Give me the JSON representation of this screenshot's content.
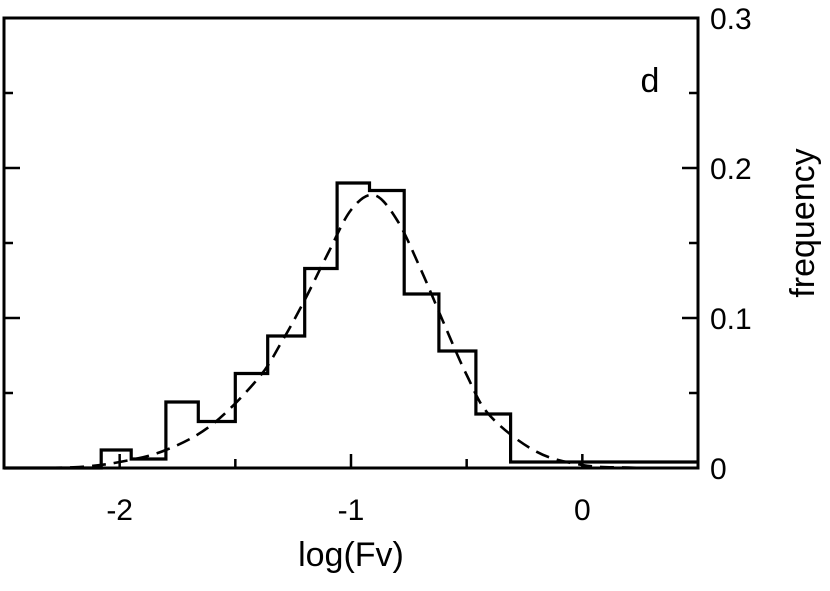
{
  "chart_data": {
    "type": "histogram",
    "panel_label": "d",
    "xlabel": "log(Fv)",
    "ylabel": "frequency",
    "xlim": [
      -2.5,
      0.5
    ],
    "ylim": [
      0,
      0.3
    ],
    "x_ticks": [
      -2,
      -1,
      0
    ],
    "x_tick_labels": [
      "-2",
      "-1",
      "0"
    ],
    "y_ticks": [
      0,
      0.1,
      0.2,
      0.3
    ],
    "y_tick_labels": [
      "0",
      "0.1",
      "0.2",
      "0.3"
    ],
    "y_axis_side": "right",
    "grid": false,
    "series": [
      {
        "style": "solid-step",
        "bin_edges": [
          -2.5,
          -2.08,
          -1.95,
          -1.8,
          -1.66,
          -1.5,
          -1.36,
          -1.2,
          -1.06,
          -0.92,
          -0.77,
          -0.62,
          -0.46,
          -0.31,
          0.5
        ],
        "values": [
          0.0,
          0.012,
          0.006,
          0.044,
          0.031,
          0.063,
          0.088,
          0.133,
          0.19,
          0.185,
          0.116,
          0.078,
          0.036,
          0.004
        ]
      },
      {
        "style": "dashed-curve",
        "distribution": "gaussian-fit",
        "x": [
          -2.5,
          -2.2,
          -2.0,
          -1.8,
          -1.6,
          -1.4,
          -1.3,
          -1.2,
          -1.1,
          -1.0,
          -0.9,
          -0.8,
          -0.7,
          -0.6,
          -0.5,
          -0.4,
          -0.2,
          0.0,
          0.2,
          0.5
        ],
        "y": [
          0.0,
          0.0005,
          0.004,
          0.012,
          0.029,
          0.06,
          0.084,
          0.112,
          0.143,
          0.172,
          0.182,
          0.165,
          0.133,
          0.097,
          0.062,
          0.035,
          0.011,
          0.002,
          0.0003,
          0.0
        ]
      }
    ]
  }
}
